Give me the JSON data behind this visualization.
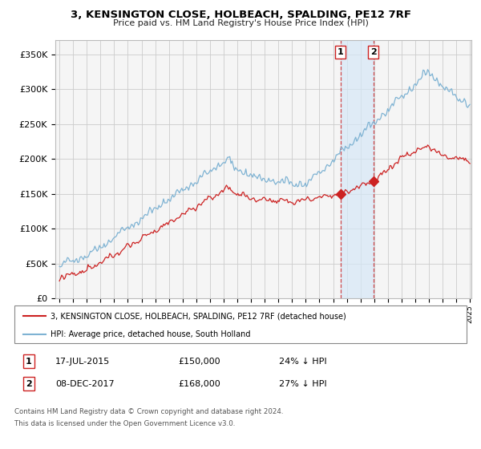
{
  "title": "3, KENSINGTON CLOSE, HOLBEACH, SPALDING, PE12 7RF",
  "subtitle": "Price paid vs. HM Land Registry's House Price Index (HPI)",
  "ylim": [
    0,
    370000
  ],
  "yticks": [
    0,
    50000,
    100000,
    150000,
    200000,
    250000,
    300000,
    350000
  ],
  "ytick_labels": [
    "£0",
    "£50K",
    "£100K",
    "£150K",
    "£200K",
    "£250K",
    "£300K",
    "£350K"
  ],
  "hpi_color": "#7fb3d3",
  "price_color": "#cc2222",
  "background_color": "#f5f5f5",
  "grid_color": "#cccccc",
  "transaction1_date": 2015.54,
  "transaction1_price": 150000,
  "transaction2_date": 2017.93,
  "transaction2_price": 168000,
  "legend_line1": "3, KENSINGTON CLOSE, HOLBEACH, SPALDING, PE12 7RF (detached house)",
  "legend_line2": "HPI: Average price, detached house, South Holland",
  "footer_line1": "Contains HM Land Registry data © Crown copyright and database right 2024.",
  "footer_line2": "This data is licensed under the Open Government Licence v3.0.",
  "table_row1": [
    "1",
    "17-JUL-2015",
    "£150,000",
    "24% ↓ HPI"
  ],
  "table_row2": [
    "2",
    "08-DEC-2017",
    "£168,000",
    "27% ↓ HPI"
  ],
  "xstart": 1995,
  "xend": 2025
}
